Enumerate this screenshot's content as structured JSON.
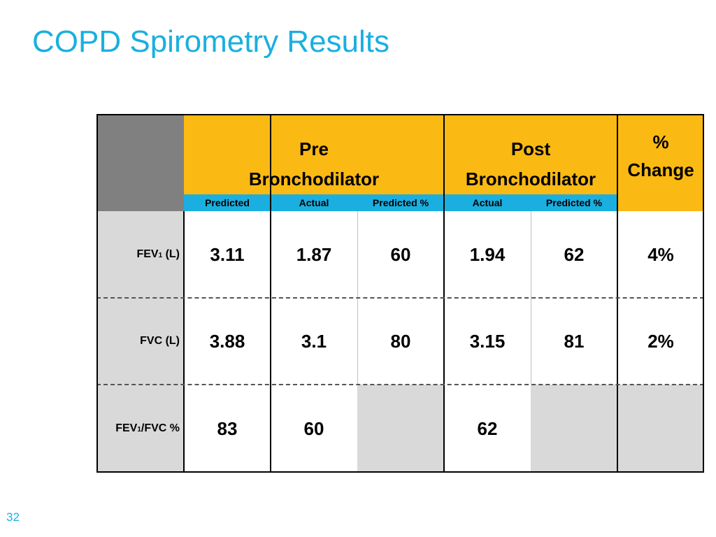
{
  "slide": {
    "title": "COPD Spirometry Results",
    "page_number": "32"
  },
  "table": {
    "headers": {
      "pre_line1": "Pre",
      "pre_line2": "Bronchodilator",
      "post_line1": "Post",
      "post_line2": "Bronchodilator",
      "change_line1": "%",
      "change_line2": "Change"
    },
    "subheaders": [
      "Predicted",
      "Actual",
      "Predicted %",
      "Actual",
      "Predicted %"
    ],
    "rows": [
      {
        "label_main": "FEV",
        "label_sub": "1",
        "label_rest": " (L)",
        "cells": [
          "3.11",
          "1.87",
          "60",
          "1.94",
          "62",
          "4%"
        ]
      },
      {
        "label_main": "FVC (L)",
        "label_sub": "",
        "label_rest": "",
        "cells": [
          "3.88",
          "3.1",
          "80",
          "3.15",
          "81",
          "2%"
        ]
      },
      {
        "label_main": "FEV",
        "label_sub": "1",
        "label_rest": "/FVC %",
        "cells": [
          "83",
          "60",
          "",
          "62",
          "",
          ""
        ]
      }
    ]
  },
  "colors": {
    "title": "#1AAFE0",
    "header_orange": "#FBB913",
    "subheader_blue": "#1AAFE0",
    "corner_grey": "#808080",
    "label_grey": "#D9D9D9"
  }
}
